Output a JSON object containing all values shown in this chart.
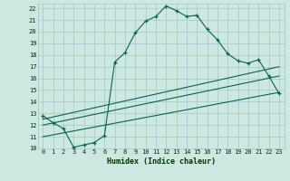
{
  "xlabel": "Humidex (Indice chaleur)",
  "bg_color": "#cce8e0",
  "grid_color": "#aacccc",
  "line_color": "#006655",
  "xlim": [
    -0.5,
    23.5
  ],
  "ylim": [
    10,
    22.4
  ],
  "xticks": [
    0,
    1,
    2,
    3,
    4,
    5,
    6,
    7,
    8,
    9,
    10,
    11,
    12,
    13,
    14,
    15,
    16,
    17,
    18,
    19,
    20,
    21,
    22,
    23
  ],
  "yticks": [
    10,
    11,
    12,
    13,
    14,
    15,
    16,
    17,
    18,
    19,
    20,
    21,
    22
  ],
  "main_x": [
    0,
    1,
    2,
    3,
    4,
    5,
    6,
    7,
    8,
    9,
    10,
    11,
    12,
    13,
    14,
    15,
    16,
    17,
    18,
    19,
    20,
    21,
    22,
    23
  ],
  "main_y": [
    12.8,
    12.2,
    11.7,
    10.1,
    10.3,
    10.5,
    11.1,
    17.4,
    18.2,
    19.9,
    20.9,
    21.3,
    22.2,
    21.8,
    21.3,
    21.4,
    20.2,
    19.3,
    18.1,
    17.5,
    17.3,
    17.6,
    16.2,
    14.7
  ],
  "line1_x": [
    0,
    23
  ],
  "line1_y": [
    12.5,
    17.0
  ],
  "line2_x": [
    0,
    23
  ],
  "line2_y": [
    12.0,
    16.2
  ],
  "line3_x": [
    0,
    23
  ],
  "line3_y": [
    11.0,
    14.8
  ]
}
